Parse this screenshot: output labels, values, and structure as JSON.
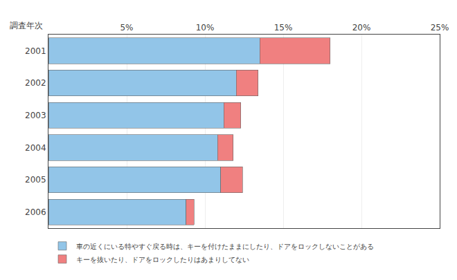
{
  "chart_data": {
    "type": "bar",
    "orientation": "horizontal",
    "stacked": true,
    "ylabel": "調査年次",
    "categories": [
      "2001",
      "2002",
      "2003",
      "2004",
      "2005",
      "2006"
    ],
    "series": [
      {
        "name": "車の近くにいる特やすぐ戻る時は、キーを付けたままにしたり、ドアをロックしないことがある",
        "color": "#92C5E8",
        "values": [
          13.5,
          12.0,
          11.2,
          10.8,
          11.0,
          8.8
        ]
      },
      {
        "name": "キーを抜いたり、ドアをロックしたりはあまりしてない",
        "color": "#F08080",
        "values": [
          4.5,
          1.4,
          1.1,
          1.0,
          1.4,
          0.5
        ]
      }
    ],
    "xlim": [
      0,
      25
    ],
    "xticks": [
      {
        "value": 5,
        "label": "5%"
      },
      {
        "value": 10,
        "label": "10%"
      },
      {
        "value": 15,
        "label": "15%"
      },
      {
        "value": 20,
        "label": "20%"
      },
      {
        "value": 25,
        "label": "25%"
      }
    ],
    "grid": true
  }
}
